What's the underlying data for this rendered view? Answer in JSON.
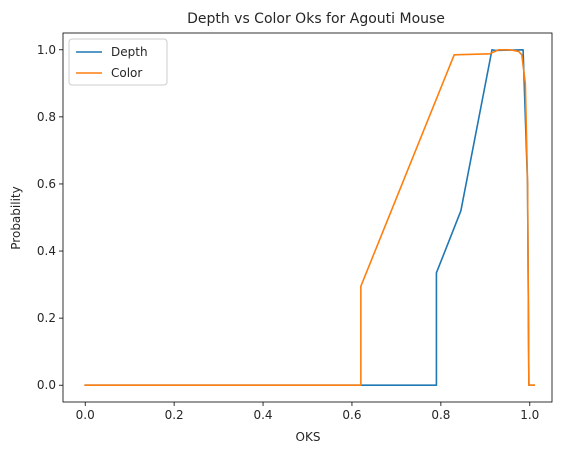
{
  "chart_data": {
    "type": "line",
    "title": "Depth vs Color Oks for Agouti Mouse",
    "xlabel": "OKS",
    "ylabel": "Probability",
    "xlim": [
      -0.05,
      1.05
    ],
    "ylim": [
      -0.05,
      1.05
    ],
    "xticks": [
      0.0,
      0.2,
      0.4,
      0.6,
      0.8,
      1.0
    ],
    "xtick_labels": [
      "0.0",
      "0.2",
      "0.4",
      "0.6",
      "0.8",
      "1.0"
    ],
    "yticks": [
      0.0,
      0.2,
      0.4,
      0.6,
      0.8,
      1.0
    ],
    "ytick_labels": [
      "0.0",
      "0.2",
      "0.4",
      "0.6",
      "0.8",
      "1.0"
    ],
    "grid": false,
    "legend": "upper-left",
    "series": [
      {
        "name": "Depth",
        "color": "#1f77b4",
        "x": [
          0.0,
          0.79,
          0.79,
          0.845,
          0.915,
          0.922,
          0.985,
          0.995,
          0.998,
          1.0,
          1.01
        ],
        "y": [
          0.0,
          0.0,
          0.335,
          0.52,
          1.0,
          0.998,
          1.0,
          0.6,
          0.0,
          0.0,
          0.0
        ]
      },
      {
        "name": "Color",
        "color": "#ff7f0e",
        "x": [
          0.0,
          0.62,
          0.62,
          0.83,
          0.91,
          0.93,
          0.955,
          0.975,
          0.982,
          0.99,
          0.995,
          0.998,
          1.0,
          1.01
        ],
        "y": [
          0.0,
          0.0,
          0.295,
          0.985,
          0.988,
          1.0,
          1.0,
          0.995,
          0.985,
          0.9,
          0.6,
          0.0,
          0.0,
          0.0
        ]
      }
    ]
  }
}
